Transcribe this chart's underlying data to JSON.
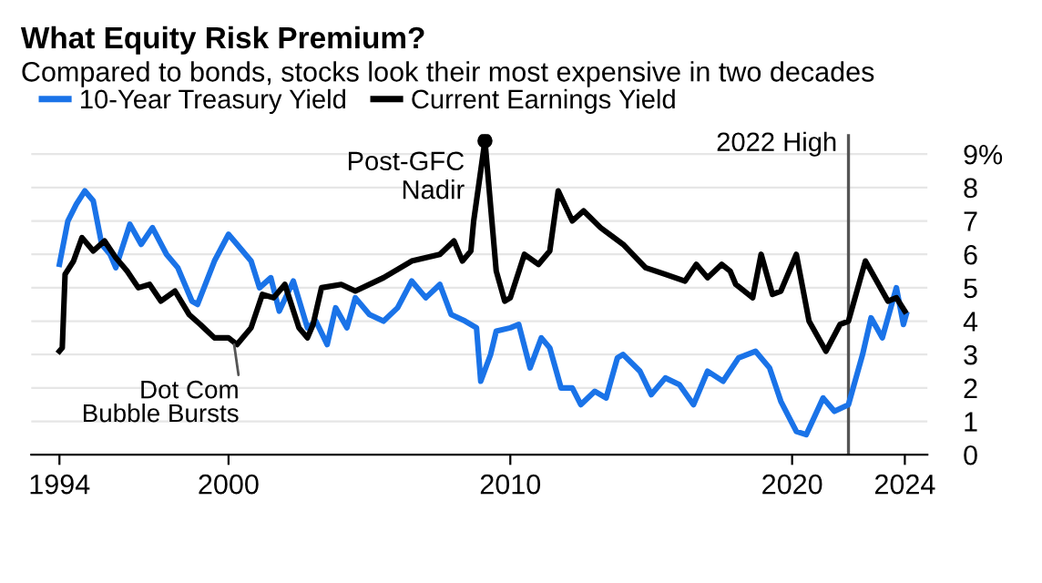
{
  "chart_data": {
    "type": "line",
    "title": "What Equity Risk Premium?",
    "subtitle": "Compared to bonds, stocks look their most expensive in two decades",
    "series": [
      {
        "name": "10-Year Treasury Yield",
        "color": "#1a73e8",
        "x": [
          1994.0,
          1994.3,
          1994.6,
          1994.9,
          1995.2,
          1995.5,
          1995.8,
          1996.0,
          1996.5,
          1996.9,
          1997.3,
          1997.8,
          1998.2,
          1998.7,
          1998.9,
          1999.5,
          2000.0,
          2000.2,
          2000.8,
          2001.1,
          2001.5,
          2001.8,
          2002.3,
          2002.8,
          2003.1,
          2003.5,
          2003.8,
          2004.2,
          2004.5,
          2005.0,
          2005.5,
          2006.0,
          2006.5,
          2007.0,
          2007.5,
          2007.9,
          2008.4,
          2008.8,
          2008.95,
          2009.3,
          2009.5,
          2010.0,
          2010.3,
          2010.7,
          2011.1,
          2011.4,
          2011.8,
          2012.2,
          2012.5,
          2013.0,
          2013.4,
          2013.8,
          2014.0,
          2014.6,
          2015.0,
          2015.5,
          2016.0,
          2016.5,
          2017.0,
          2017.55,
          2018.1,
          2018.7,
          2019.2,
          2019.6,
          2020.15,
          2020.5,
          2021.1,
          2021.5,
          2022.0,
          2022.5,
          2022.8,
          2023.2,
          2023.7,
          2023.95,
          2024.05
        ],
        "values": [
          5.7,
          7.0,
          7.5,
          7.9,
          7.6,
          6.3,
          6.0,
          5.6,
          6.9,
          6.3,
          6.8,
          6.0,
          5.6,
          4.6,
          4.5,
          5.8,
          6.6,
          6.4,
          5.8,
          5.0,
          5.3,
          4.3,
          5.2,
          3.8,
          4.0,
          3.3,
          4.4,
          3.8,
          4.7,
          4.2,
          4.0,
          4.4,
          5.2,
          4.7,
          5.1,
          4.2,
          4.0,
          3.8,
          2.2,
          3.0,
          3.7,
          3.8,
          3.9,
          2.6,
          3.5,
          3.2,
          2.0,
          2.0,
          1.5,
          1.9,
          1.7,
          2.9,
          3.0,
          2.5,
          1.8,
          2.3,
          2.1,
          1.5,
          2.5,
          2.2,
          2.9,
          3.1,
          2.6,
          1.6,
          0.7,
          0.6,
          1.7,
          1.3,
          1.5,
          3.0,
          4.1,
          3.5,
          5.0,
          3.9,
          4.2
        ]
      },
      {
        "name": "Current Earnings Yield",
        "color": "#000000",
        "x": [
          1994.0,
          1994.1,
          1994.2,
          1994.5,
          1994.8,
          1995.2,
          1995.6,
          1996.0,
          1996.4,
          1996.8,
          1997.2,
          1997.6,
          1998.1,
          1998.6,
          1999.0,
          1999.5,
          2000.0,
          2000.3,
          2000.8,
          2001.2,
          2001.6,
          2002.0,
          2002.5,
          2002.8,
          2003.0,
          2003.3,
          2004.0,
          2004.5,
          2005.5,
          2006.5,
          2007.5,
          2008.0,
          2008.3,
          2008.6,
          2008.7,
          2009.1,
          2009.5,
          2009.8,
          2010.0,
          2010.5,
          2011.0,
          2011.4,
          2011.7,
          2012.2,
          2012.6,
          2013.2,
          2014.0,
          2014.8,
          2015.5,
          2016.2,
          2016.6,
          2017.0,
          2017.5,
          2017.8,
          2018.0,
          2018.6,
          2018.9,
          2019.3,
          2019.6,
          2020.15,
          2020.6,
          2021.2,
          2021.7,
          2022.0,
          2022.6,
          2023.4,
          2023.7,
          2024.0
        ],
        "values": [
          3.1,
          3.2,
          5.4,
          5.8,
          6.5,
          6.1,
          6.4,
          5.9,
          5.5,
          5.0,
          5.1,
          4.6,
          4.9,
          4.2,
          3.9,
          3.5,
          3.5,
          3.3,
          3.8,
          4.8,
          4.7,
          5.1,
          3.8,
          3.5,
          3.9,
          5.0,
          5.1,
          4.9,
          5.3,
          5.8,
          6.0,
          6.4,
          5.8,
          6.1,
          7.0,
          9.4,
          5.5,
          4.6,
          4.7,
          6.0,
          5.7,
          6.1,
          7.9,
          7.0,
          7.3,
          6.8,
          6.3,
          5.6,
          5.4,
          5.2,
          5.7,
          5.3,
          5.7,
          5.5,
          5.1,
          4.7,
          6.0,
          4.8,
          4.9,
          6.0,
          4.0,
          3.1,
          3.9,
          4.0,
          5.8,
          4.6,
          4.7,
          4.3
        ]
      }
    ],
    "xlim": [
      1993,
      2024.8
    ],
    "xticks": [
      1994,
      2000,
      2010,
      2020,
      2024
    ],
    "ylim": [
      0,
      9.6
    ],
    "yticks": [
      0,
      1,
      2,
      3,
      4,
      5,
      6,
      7,
      8,
      {
        "value": 9,
        "label": "9%"
      }
    ],
    "grid": "y",
    "legend": "top left",
    "line_style": "solid",
    "marker": "none",
    "ref_lines": [
      {
        "axis": "x",
        "value": 2022,
        "label": "2022 High",
        "color": "#555555"
      }
    ],
    "annotations": [
      {
        "text": "Dot Com\nBubble Bursts",
        "x": 2000.2,
        "y": 3.3
      },
      {
        "text": "Post-GFC\nNadir",
        "x": 2009.1,
        "y": 9.4
      }
    ]
  }
}
